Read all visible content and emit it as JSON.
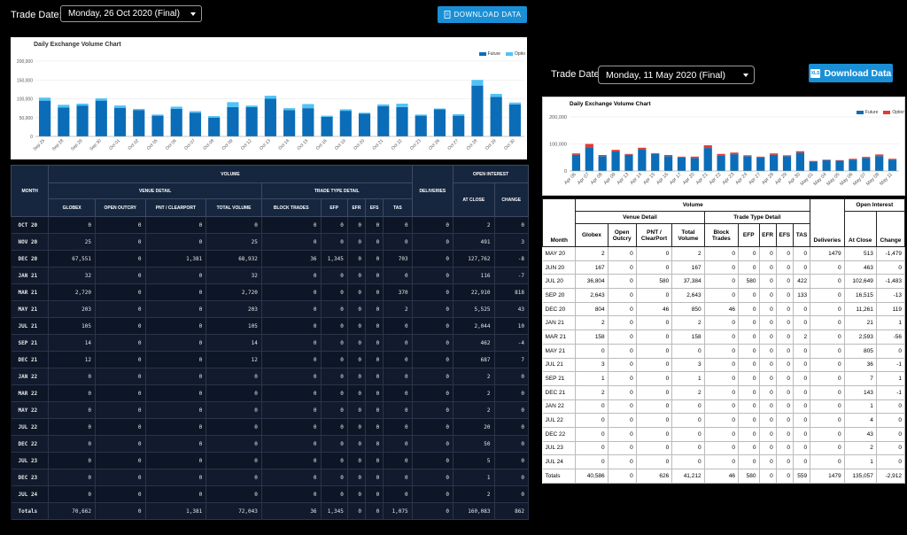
{
  "left": {
    "trade_date_label": "Trade Date:",
    "trade_date_value": "Monday, 26 Oct 2020 (Final)",
    "download_label": "DOWNLOAD DATA",
    "chart_title": "Daily Exchange Volume Chart",
    "legend": [
      "Future",
      "Optio"
    ],
    "colors": {
      "future": "#0b6db7",
      "option": "#4fc3f7"
    },
    "headers": {
      "month": "MONTH",
      "volume": "VOLUME",
      "venue": "VENUE DETAIL",
      "trade": "TRADE TYPE DETAIL",
      "deliveries": "DELIVERIES",
      "oi": "OPEN INTEREST",
      "globex": "GLOBEX",
      "outcry": "OPEN OUTCRY",
      "pnt": "PNT / CLEARPORT",
      "total": "TOTAL VOLUME",
      "block": "BLOCK TRADES",
      "efp": "EFP",
      "efr": "EFR",
      "efs": "EFS",
      "tas": "TAS",
      "close": "AT CLOSE",
      "change": "CHANGE"
    },
    "rows": [
      [
        "OCT 20",
        "0",
        "0",
        "0",
        "0",
        "0",
        "0",
        "0",
        "0",
        "0",
        "0",
        "2",
        "0"
      ],
      [
        "NOV 20",
        "25",
        "0",
        "0",
        "25",
        "0",
        "0",
        "0",
        "0",
        "0",
        "0",
        "491",
        "3"
      ],
      [
        "DEC 20",
        "67,551",
        "0",
        "1,381",
        "68,932",
        "36",
        "1,345",
        "0",
        "0",
        "703",
        "0",
        "127,762",
        "-8"
      ],
      [
        "JAN 21",
        "32",
        "0",
        "0",
        "32",
        "0",
        "0",
        "0",
        "0",
        "0",
        "0",
        "116",
        "-7"
      ],
      [
        "MAR 21",
        "2,720",
        "0",
        "0",
        "2,720",
        "0",
        "0",
        "0",
        "0",
        "370",
        "0",
        "22,910",
        "818"
      ],
      [
        "MAY 21",
        "203",
        "0",
        "0",
        "203",
        "0",
        "0",
        "0",
        "0",
        "2",
        "0",
        "5,525",
        "43"
      ],
      [
        "JUL 21",
        "105",
        "0",
        "0",
        "105",
        "0",
        "0",
        "0",
        "0",
        "0",
        "0",
        "2,044",
        "10"
      ],
      [
        "SEP 21",
        "14",
        "0",
        "0",
        "14",
        "0",
        "0",
        "0",
        "0",
        "0",
        "0",
        "462",
        "-4"
      ],
      [
        "DEC 21",
        "12",
        "0",
        "0",
        "12",
        "0",
        "0",
        "0",
        "0",
        "0",
        "0",
        "687",
        "7"
      ],
      [
        "JAN 22",
        "0",
        "0",
        "0",
        "0",
        "0",
        "0",
        "0",
        "0",
        "0",
        "0",
        "2",
        "0"
      ],
      [
        "MAR 22",
        "0",
        "0",
        "0",
        "0",
        "0",
        "0",
        "0",
        "0",
        "0",
        "0",
        "2",
        "0"
      ],
      [
        "MAY 22",
        "0",
        "0",
        "0",
        "0",
        "0",
        "0",
        "0",
        "0",
        "0",
        "0",
        "2",
        "0"
      ],
      [
        "JUL 22",
        "0",
        "0",
        "0",
        "0",
        "0",
        "0",
        "0",
        "0",
        "0",
        "0",
        "20",
        "0"
      ],
      [
        "DEC 22",
        "0",
        "0",
        "0",
        "0",
        "0",
        "0",
        "0",
        "0",
        "0",
        "0",
        "50",
        "0"
      ],
      [
        "JUL 23",
        "0",
        "0",
        "0",
        "0",
        "0",
        "0",
        "0",
        "0",
        "0",
        "0",
        "5",
        "0"
      ],
      [
        "DEC 23",
        "0",
        "0",
        "0",
        "0",
        "0",
        "0",
        "0",
        "0",
        "0",
        "0",
        "1",
        "0"
      ],
      [
        "JUL 24",
        "0",
        "0",
        "0",
        "0",
        "0",
        "0",
        "0",
        "0",
        "0",
        "0",
        "2",
        "0"
      ],
      [
        "Totals",
        "70,662",
        "0",
        "1,381",
        "72,043",
        "36",
        "1,345",
        "0",
        "0",
        "1,075",
        "0",
        "160,083",
        "862"
      ]
    ]
  },
  "right": {
    "trade_date_label": "Trade Date:",
    "trade_date_value": "Monday, 11 May 2020 (Final)",
    "download_label": "Download Data",
    "xls_label": "XLS",
    "chart_title": "Daily Exchange Volume Chart",
    "legend": [
      "Future",
      "Optior"
    ],
    "colors": {
      "future": "#0b6db7",
      "option": "#e53935"
    },
    "headers": {
      "month": "Month",
      "volume": "Volume",
      "venue": "Venue Detail",
      "trade": "Trade Type Detail",
      "deliveries": "Deliveries",
      "oi": "Open Interest",
      "globex": "Globex",
      "outcry": "Open Outcry",
      "pnt": "PNT / ClearPort",
      "total": "Total Volume",
      "block": "Block Trades",
      "efp": "EFP",
      "efr": "EFR",
      "efs": "EFS",
      "tas": "TAS",
      "close": "At Close",
      "change": "Change"
    },
    "rows": [
      [
        "MAY 20",
        "2",
        "0",
        "0",
        "2",
        "0",
        "0",
        "0",
        "0",
        "0",
        "1479",
        "513",
        "-1,479"
      ],
      [
        "JUN 20",
        "167",
        "0",
        "0",
        "167",
        "0",
        "0",
        "0",
        "0",
        "0",
        "0",
        "463",
        "0"
      ],
      [
        "JUL 20",
        "36,804",
        "0",
        "580",
        "37,384",
        "0",
        "580",
        "0",
        "0",
        "422",
        "0",
        "102,649",
        "-1,483"
      ],
      [
        "SEP 20",
        "2,643",
        "0",
        "0",
        "2,643",
        "0",
        "0",
        "0",
        "0",
        "133",
        "0",
        "16,515",
        "-13"
      ],
      [
        "DEC 20",
        "804",
        "0",
        "46",
        "850",
        "46",
        "0",
        "0",
        "0",
        "0",
        "0",
        "11,261",
        "119"
      ],
      [
        "JAN 21",
        "2",
        "0",
        "0",
        "2",
        "0",
        "0",
        "0",
        "0",
        "0",
        "0",
        "21",
        "1"
      ],
      [
        "MAR 21",
        "158",
        "0",
        "0",
        "158",
        "0",
        "0",
        "0",
        "0",
        "2",
        "0",
        "2,593",
        "-56"
      ],
      [
        "MAY 21",
        "0",
        "0",
        "0",
        "0",
        "0",
        "0",
        "0",
        "0",
        "0",
        "0",
        "805",
        "0"
      ],
      [
        "JUL 21",
        "3",
        "0",
        "0",
        "3",
        "0",
        "0",
        "0",
        "0",
        "0",
        "0",
        "36",
        "-1"
      ],
      [
        "SEP 21",
        "1",
        "0",
        "0",
        "1",
        "0",
        "0",
        "0",
        "0",
        "0",
        "0",
        "7",
        "1"
      ],
      [
        "DEC 21",
        "2",
        "0",
        "0",
        "2",
        "0",
        "0",
        "0",
        "0",
        "0",
        "0",
        "143",
        "-1"
      ],
      [
        "JAN 22",
        "0",
        "0",
        "0",
        "0",
        "0",
        "0",
        "0",
        "0",
        "0",
        "0",
        "1",
        "0"
      ],
      [
        "JUL 22",
        "0",
        "0",
        "0",
        "0",
        "0",
        "0",
        "0",
        "0",
        "0",
        "0",
        "4",
        "0"
      ],
      [
        "DEC 22",
        "0",
        "0",
        "0",
        "0",
        "0",
        "0",
        "0",
        "0",
        "0",
        "0",
        "43",
        "0"
      ],
      [
        "JUL 23",
        "0",
        "0",
        "0",
        "0",
        "0",
        "0",
        "0",
        "0",
        "0",
        "0",
        "2",
        "0"
      ],
      [
        "JUL 24",
        "0",
        "0",
        "0",
        "0",
        "0",
        "0",
        "0",
        "0",
        "0",
        "0",
        "1",
        "0"
      ],
      [
        "Totals",
        "40,586",
        "0",
        "626",
        "41,212",
        "46",
        "580",
        "0",
        "0",
        "559",
        "1479",
        "135,057",
        "-2,912"
      ]
    ]
  },
  "chart_data": [
    {
      "type": "bar",
      "title": "Daily Exchange Volume Chart",
      "stacked": true,
      "ylim": [
        0,
        200000
      ],
      "yticks": [
        "0",
        "50,000",
        "100,000",
        "150,000",
        "200,000"
      ],
      "categories": [
        "Sep 25",
        "Sep 28",
        "Sep 29",
        "Sep 30",
        "Oct 01",
        "Oct 02",
        "Oct 05",
        "Oct 06",
        "Oct 07",
        "Oct 08",
        "Oct 09",
        "Oct 12",
        "Oct 13",
        "Oct 14",
        "Oct 15",
        "Oct 16",
        "Oct 19",
        "Oct 20",
        "Oct 21",
        "Oct 22",
        "Oct 23",
        "Oct 26",
        "Oct 27",
        "Oct 28",
        "Oct 29",
        "Oct 30"
      ],
      "series": [
        {
          "name": "Future",
          "values": [
            95000,
            77000,
            82000,
            95000,
            76000,
            70000,
            55000,
            73000,
            63000,
            50000,
            78000,
            78000,
            100000,
            70000,
            75000,
            52000,
            68000,
            60000,
            80000,
            78000,
            55000,
            72000,
            55000,
            135000,
            105000,
            85000
          ]
        },
        {
          "name": "Optio",
          "values": [
            8000,
            7000,
            5000,
            6000,
            6000,
            3000,
            3000,
            6000,
            4000,
            4000,
            13000,
            4000,
            8000,
            5000,
            11000,
            3000,
            4000,
            3000,
            5000,
            9000,
            3000,
            2000,
            4000,
            15000,
            8000,
            5000
          ]
        }
      ]
    },
    {
      "type": "bar",
      "title": "Daily Exchange Volume Chart",
      "stacked": true,
      "ylim": [
        0,
        200000
      ],
      "yticks": [
        "0",
        "100,000",
        "200,000"
      ],
      "categories": [
        "Apr 06",
        "Apr 07",
        "Apr 08",
        "Apr 09",
        "Apr 13",
        "Apr 14",
        "Apr 15",
        "Apr 16",
        "Apr 17",
        "Apr 20",
        "Apr 21",
        "Apr 22",
        "Apr 23",
        "Apr 24",
        "Apr 27",
        "Apr 28",
        "Apr 29",
        "Apr 30",
        "May 01",
        "May 04",
        "May 05",
        "May 06",
        "May 07",
        "May 08",
        "May 11"
      ],
      "series": [
        {
          "name": "Future",
          "values": [
            60000,
            88000,
            55000,
            72000,
            60000,
            80000,
            63000,
            55000,
            50000,
            48000,
            85000,
            58000,
            62000,
            55000,
            50000,
            60000,
            55000,
            68000,
            35000,
            40000,
            38000,
            42000,
            48000,
            55000,
            42000
          ]
        },
        {
          "name": "Optior",
          "values": [
            5000,
            12000,
            4000,
            6000,
            3000,
            6000,
            3000,
            4000,
            3000,
            5000,
            10000,
            5000,
            6000,
            3000,
            3000,
            5000,
            3000,
            5000,
            2000,
            2000,
            2000,
            3000,
            4000,
            6000,
            3000
          ]
        }
      ]
    }
  ]
}
